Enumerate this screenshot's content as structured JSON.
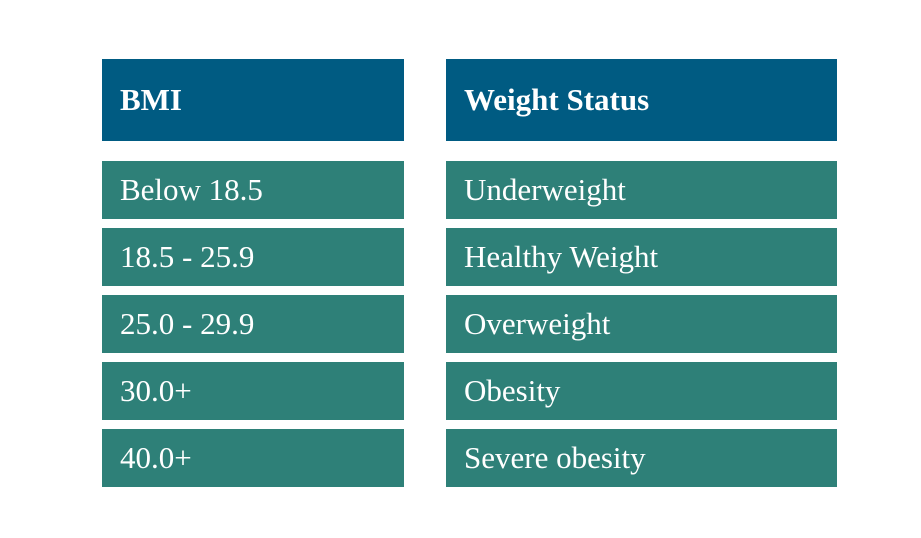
{
  "table": {
    "header": [
      "BMI",
      "Weight Status"
    ],
    "rows": [
      [
        "Below 18.5",
        "Underweight"
      ],
      [
        "18.5 - 25.9",
        "Healthy Weight"
      ],
      [
        "25.0 - 29.9",
        "Overweight"
      ],
      [
        "30.0+",
        "Obesity"
      ],
      [
        "40.0+",
        "Severe obesity"
      ]
    ]
  }
}
